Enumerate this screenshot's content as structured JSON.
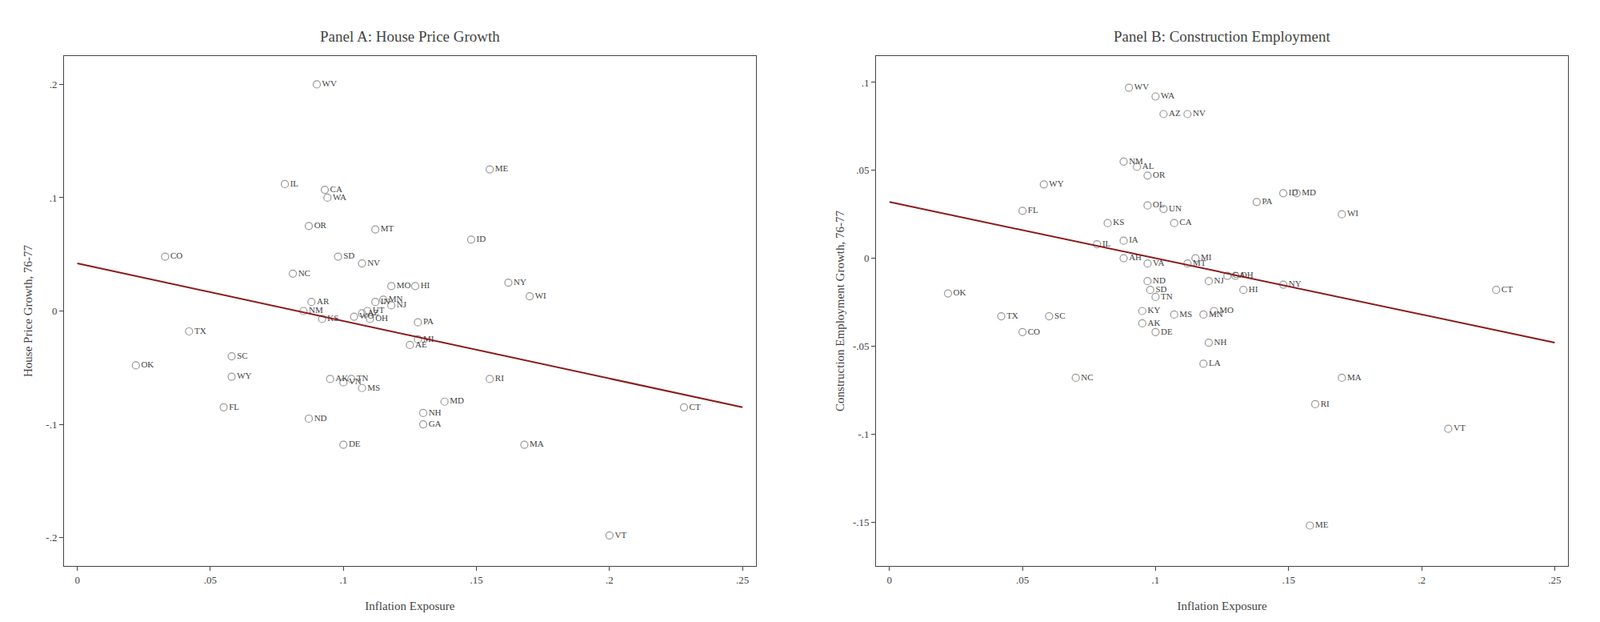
{
  "chart_data": [
    {
      "type": "scatter",
      "title": "Panel A: House Price Growth",
      "xlabel": "Inflation Exposure",
      "ylabel": "House Price Growth, 76-77",
      "xlim": [
        -0.005,
        0.255
      ],
      "ylim": [
        -0.225,
        0.225
      ],
      "xticks": [
        0,
        {
          "value": 0.05,
          "label": ".05"
        },
        {
          "value": 0.1,
          "label": ".1"
        },
        {
          "value": 0.15,
          "label": ".15"
        },
        {
          "value": 0.2,
          "label": ".2"
        },
        {
          "value": 0.25,
          "label": ".25"
        }
      ],
      "yticks": [
        {
          "value": -0.2,
          "label": "-.2"
        },
        {
          "value": -0.1,
          "label": "-.1"
        },
        0,
        {
          "value": 0.1,
          "label": ".1"
        },
        {
          "value": 0.2,
          "label": ".2"
        }
      ],
      "grid": false,
      "series": [
        {
          "type": "scatter",
          "marker": "circle-open",
          "color": "#999999",
          "labels": [
            "WV",
            "IL",
            "CA",
            "WA",
            "ME",
            "OR",
            "MT",
            "ID",
            "CO",
            "SD",
            "NV",
            "NC",
            "MO",
            "HI",
            "NY",
            "WI",
            "AR",
            "MN",
            "NJ",
            "IN",
            "NM",
            "AZ",
            "UT",
            "WO",
            "OH",
            "KS",
            "PA",
            "MI",
            "AE",
            "TX",
            "SC",
            "OK",
            "WY",
            "AK",
            "VN",
            "TN",
            "MS",
            "RI",
            "FL",
            "MD",
            "NH",
            "ND",
            "GA",
            "DE",
            "MA",
            "CT",
            "VT"
          ],
          "x": [
            0.09,
            0.078,
            0.093,
            0.094,
            0.155,
            0.087,
            0.112,
            0.148,
            0.033,
            0.098,
            0.107,
            0.081,
            0.118,
            0.127,
            0.162,
            0.17,
            0.088,
            0.115,
            0.118,
            0.112,
            0.085,
            0.107,
            0.109,
            0.104,
            0.11,
            0.092,
            0.128,
            0.128,
            0.125,
            0.042,
            0.058,
            0.022,
            0.058,
            0.095,
            0.1,
            0.103,
            0.107,
            0.155,
            0.055,
            0.138,
            0.13,
            0.087,
            0.13,
            0.1,
            0.168,
            0.228,
            0.2
          ],
          "values": [
            0.2,
            0.112,
            0.107,
            0.1,
            0.125,
            0.075,
            0.072,
            0.063,
            0.048,
            0.048,
            0.042,
            0.033,
            0.022,
            0.022,
            0.025,
            0.013,
            0.008,
            0.01,
            0.005,
            0.008,
            0.0,
            -0.002,
            0.0,
            -0.005,
            -0.007,
            -0.007,
            -0.01,
            -0.025,
            -0.03,
            -0.018,
            -0.04,
            -0.048,
            -0.058,
            -0.06,
            -0.063,
            -0.06,
            -0.068,
            -0.06,
            -0.085,
            -0.08,
            -0.09,
            -0.095,
            -0.1,
            -0.118,
            -0.118,
            -0.085,
            -0.198
          ]
        },
        {
          "type": "line",
          "color": "#8b1a1a",
          "x": [
            0.0,
            0.25
          ],
          "values": [
            0.042,
            -0.085
          ]
        }
      ]
    },
    {
      "type": "scatter",
      "title": "Panel B: Construction Employment",
      "xlabel": "Inflation Exposure",
      "ylabel": "Construction Employment Growth, 76-77",
      "xlim": [
        -0.005,
        0.255
      ],
      "ylim": [
        -0.175,
        0.115
      ],
      "xticks": [
        0,
        {
          "value": 0.05,
          "label": ".05"
        },
        {
          "value": 0.1,
          "label": ".1"
        },
        {
          "value": 0.15,
          "label": ".15"
        },
        {
          "value": 0.2,
          "label": ".2"
        },
        {
          "value": 0.25,
          "label": ".25"
        }
      ],
      "yticks": [
        {
          "value": -0.15,
          "label": "-.15"
        },
        {
          "value": -0.1,
          "label": "-.1"
        },
        {
          "value": -0.05,
          "label": "-.05"
        },
        0,
        {
          "value": 0.05,
          "label": ".05"
        },
        {
          "value": 0.1,
          "label": ".1"
        }
      ],
      "grid": false,
      "series": [
        {
          "type": "scatter",
          "marker": "circle-open",
          "color": "#999999",
          "labels": [
            "WV",
            "WA",
            "AZ",
            "NV",
            "NM",
            "AL",
            "OR",
            "WY",
            "ID",
            "MD",
            "OL",
            "UN",
            "PA",
            "FL",
            "CA",
            "WI",
            "KS",
            "IA",
            "IL",
            "AH",
            "VA",
            "ND",
            "SD",
            "TN",
            "MI",
            "MT",
            "GA",
            "NJ",
            "HI",
            "NY",
            "OH",
            "OK",
            "KY",
            "MO",
            "MN",
            "MS",
            "AK",
            "TX",
            "SC",
            "CO",
            "DE",
            "CT",
            "NH",
            "LA",
            "NC",
            "MA",
            "RI",
            "VT",
            "ME"
          ],
          "x": [
            0.09,
            0.1,
            0.103,
            0.112,
            0.088,
            0.093,
            0.097,
            0.058,
            0.148,
            0.153,
            0.097,
            0.103,
            0.138,
            0.05,
            0.107,
            0.17,
            0.082,
            0.088,
            0.078,
            0.088,
            0.097,
            0.097,
            0.098,
            0.1,
            0.115,
            0.112,
            0.127,
            0.12,
            0.133,
            0.148,
            0.13,
            0.022,
            0.095,
            0.122,
            0.118,
            0.107,
            0.095,
            0.042,
            0.06,
            0.05,
            0.1,
            0.228,
            0.12,
            0.118,
            0.07,
            0.17,
            0.16,
            0.21,
            0.158
          ],
          "values": [
            0.097,
            0.092,
            0.082,
            0.082,
            0.055,
            0.052,
            0.047,
            0.042,
            0.037,
            0.037,
            0.03,
            0.028,
            0.032,
            0.027,
            0.02,
            0.025,
            0.02,
            0.01,
            0.008,
            0.0,
            -0.003,
            -0.013,
            -0.018,
            -0.022,
            0.0,
            -0.003,
            -0.01,
            -0.013,
            -0.018,
            -0.015,
            -0.01,
            -0.02,
            -0.03,
            -0.03,
            -0.032,
            -0.032,
            -0.037,
            -0.033,
            -0.033,
            -0.042,
            -0.042,
            -0.018,
            -0.048,
            -0.06,
            -0.068,
            -0.068,
            -0.083,
            -0.097,
            -0.152
          ]
        },
        {
          "type": "line",
          "color": "#8b1a1a",
          "x": [
            0.0,
            0.25
          ],
          "values": [
            0.032,
            -0.048
          ]
        }
      ]
    }
  ]
}
